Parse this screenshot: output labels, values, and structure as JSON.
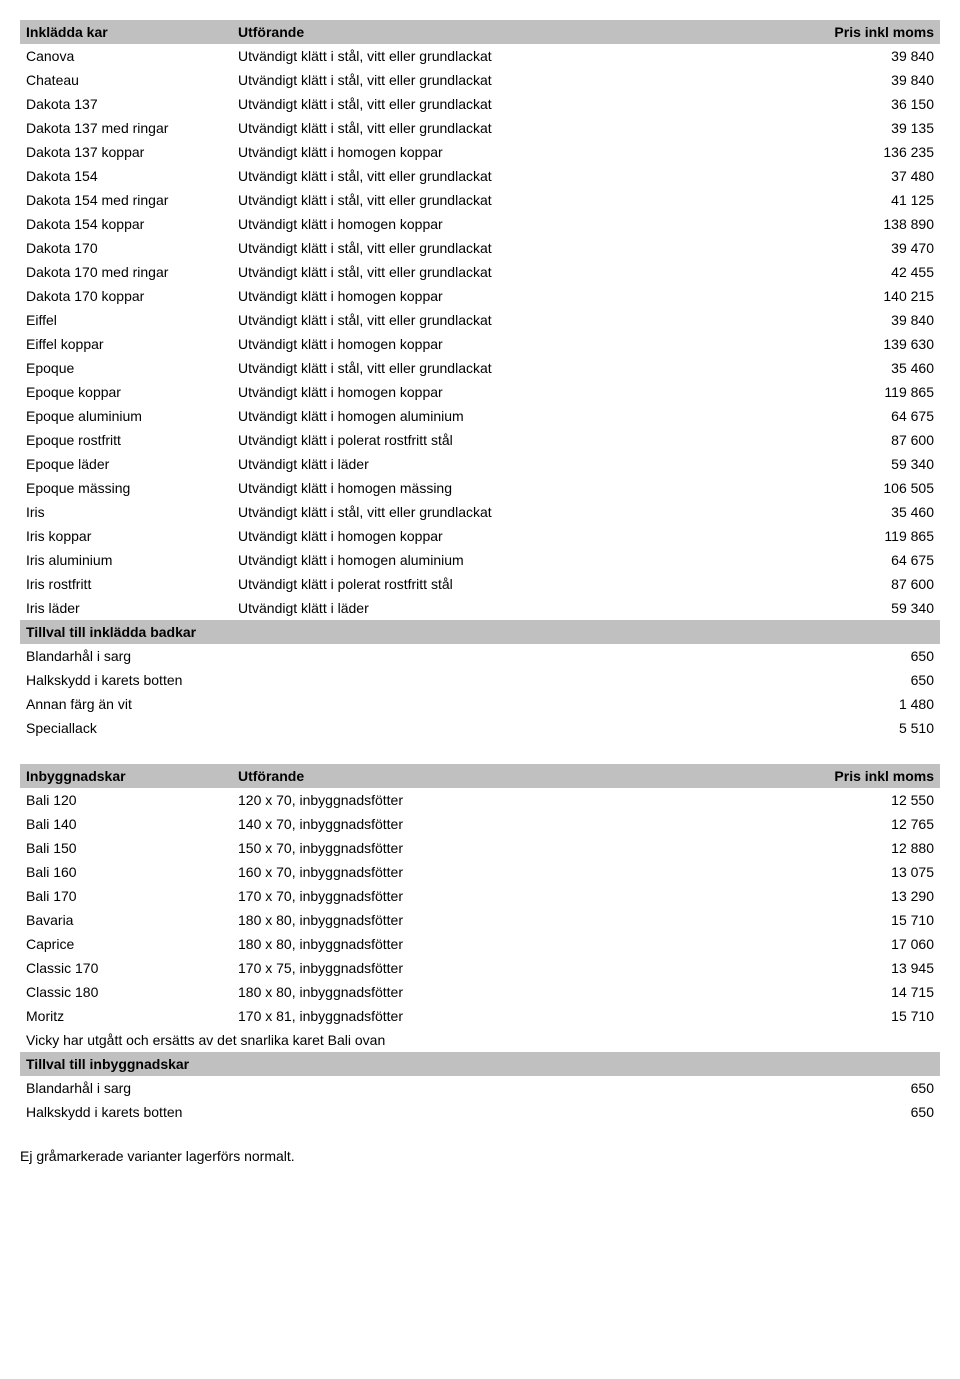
{
  "table1": {
    "headers": {
      "c1": "Inklädda kar",
      "c2": "Utförande",
      "c3": "Pris inkl moms"
    },
    "rows": [
      {
        "c1": "Canova",
        "c2": "Utvändigt klätt i stål, vitt eller grundlackat",
        "c3": "39 840"
      },
      {
        "c1": "Chateau",
        "c2": "Utvändigt klätt i stål, vitt eller grundlackat",
        "c3": "39 840"
      },
      {
        "c1": "Dakota 137",
        "c2": "Utvändigt klätt i stål, vitt eller grundlackat",
        "c3": "36 150"
      },
      {
        "c1": "Dakota 137 med ringar",
        "c2": "Utvändigt klätt i stål, vitt eller grundlackat",
        "c3": "39 135"
      },
      {
        "c1": "Dakota 137 koppar",
        "c2": "Utvändigt klätt i homogen koppar",
        "c3": "136 235"
      },
      {
        "c1": "Dakota 154",
        "c2": "Utvändigt klätt i stål, vitt eller grundlackat",
        "c3": "37 480"
      },
      {
        "c1": "Dakota 154 med ringar",
        "c2": "Utvändigt klätt i stål, vitt eller grundlackat",
        "c3": "41 125"
      },
      {
        "c1": "Dakota 154 koppar",
        "c2": "Utvändigt klätt i homogen koppar",
        "c3": "138 890"
      },
      {
        "c1": "Dakota 170",
        "c2": "Utvändigt klätt i stål, vitt eller grundlackat",
        "c3": "39 470"
      },
      {
        "c1": "Dakota 170 med ringar",
        "c2": "Utvändigt klätt i stål, vitt eller grundlackat",
        "c3": "42 455"
      },
      {
        "c1": "Dakota 170 koppar",
        "c2": "Utvändigt klätt i homogen koppar",
        "c3": "140 215"
      },
      {
        "c1": "Eiffel",
        "c2": "Utvändigt klätt i stål, vitt eller grundlackat",
        "c3": "39 840"
      },
      {
        "c1": "Eiffel koppar",
        "c2": "Utvändigt klätt i homogen koppar",
        "c3": "139 630"
      },
      {
        "c1": "Epoque",
        "c2": "Utvändigt klätt i stål, vitt eller grundlackat",
        "c3": "35 460"
      },
      {
        "c1": "Epoque koppar",
        "c2": "Utvändigt klätt i homogen koppar",
        "c3": "119 865"
      },
      {
        "c1": "Epoque aluminium",
        "c2": "Utvändigt klätt i homogen aluminium",
        "c3": "64 675"
      },
      {
        "c1": "Epoque rostfritt",
        "c2": "Utvändigt klätt i polerat rostfritt stål",
        "c3": "87 600"
      },
      {
        "c1": "Epoque läder",
        "c2": "Utvändigt klätt i läder",
        "c3": "59 340"
      },
      {
        "c1": "Epoque mässing",
        "c2": "Utvändigt klätt i homogen mässing",
        "c3": "106 505"
      },
      {
        "c1": "Iris",
        "c2": "Utvändigt klätt i stål, vitt eller grundlackat",
        "c3": "35 460"
      },
      {
        "c1": "Iris koppar",
        "c2": "Utvändigt klätt i homogen koppar",
        "c3": "119 865"
      },
      {
        "c1": "Iris aluminium",
        "c2": "Utvändigt klätt i homogen aluminium",
        "c3": "64 675"
      },
      {
        "c1": "Iris rostfritt",
        "c2": "Utvändigt klätt i polerat rostfritt stål",
        "c3": "87 600"
      },
      {
        "c1": "Iris läder",
        "c2": "Utvändigt klätt i läder",
        "c3": "59 340"
      }
    ],
    "section": "Tillval till inklädda badkar",
    "section_rows": [
      {
        "c1": "Blandarhål i sarg",
        "c2": "",
        "c3": "650"
      },
      {
        "c1": "Halkskydd i karets botten",
        "c2": "",
        "c3": "650"
      },
      {
        "c1": "Annan färg än vit",
        "c2": "",
        "c3": "1 480"
      },
      {
        "c1": "Speciallack",
        "c2": "",
        "c3": "5 510"
      }
    ]
  },
  "table2": {
    "headers": {
      "c1": "Inbyggnadskar",
      "c2": "Utförande",
      "c3": "Pris inkl moms"
    },
    "rows": [
      {
        "c1": "Bali 120",
        "c2": "120 x 70, inbyggnadsfötter",
        "c3": "12 550"
      },
      {
        "c1": "Bali 140",
        "c2": "140 x 70, inbyggnadsfötter",
        "c3": "12 765"
      },
      {
        "c1": "Bali 150",
        "c2": "150 x 70, inbyggnadsfötter",
        "c3": "12 880"
      },
      {
        "c1": "Bali 160",
        "c2": "160 x 70, inbyggnadsfötter",
        "c3": "13 075"
      },
      {
        "c1": "Bali 170",
        "c2": "170 x 70, inbyggnadsfötter",
        "c3": "13 290"
      },
      {
        "c1": "Bavaria",
        "c2": "180 x 80, inbyggnadsfötter",
        "c3": "15 710"
      },
      {
        "c1": "Caprice",
        "c2": "180 x 80, inbyggnadsfötter",
        "c3": "17 060"
      },
      {
        "c1": "Classic 170",
        "c2": "170 x 75, inbyggnadsfötter",
        "c3": "13 945"
      },
      {
        "c1": "Classic 180",
        "c2": "180 x 80, inbyggnadsfötter",
        "c3": "14 715"
      },
      {
        "c1": "Moritz",
        "c2": "170 x 81, inbyggnadsfötter",
        "c3": "15 710"
      }
    ],
    "note": "Vicky har utgått och ersätts av det snarlika karet Bali ovan",
    "section": "Tillval till inbyggnadskar",
    "section_rows": [
      {
        "c1": "Blandarhål i sarg",
        "c2": "",
        "c3": "650"
      },
      {
        "c1": "Halkskydd i karets botten",
        "c2": "",
        "c3": "650"
      }
    ]
  },
  "footnote": "Ej gråmarkerade varianter lagerförs normalt."
}
